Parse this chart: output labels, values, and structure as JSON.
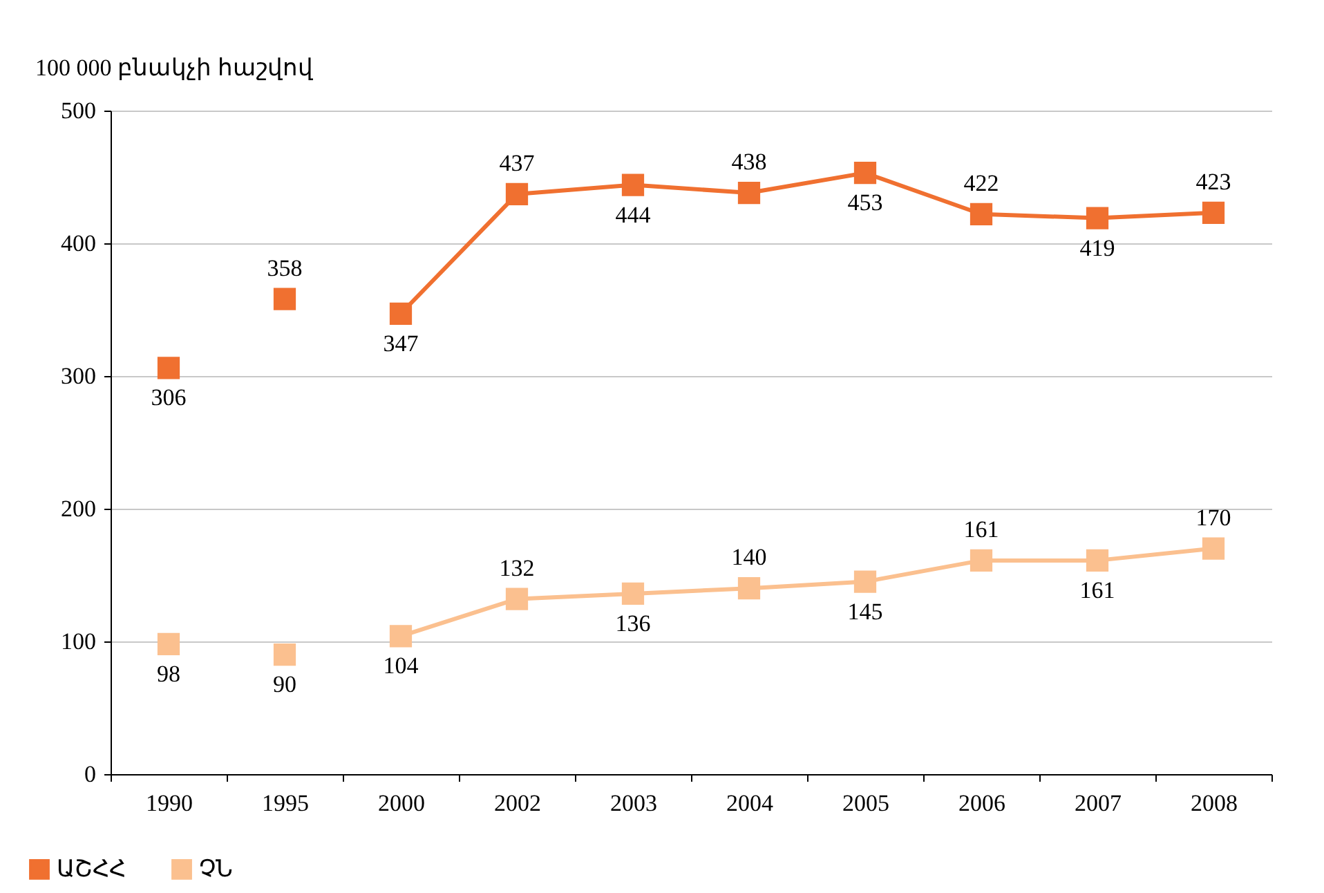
{
  "chart_data": {
    "type": "line",
    "ylabel": "100 000 բնակչի հաշվով",
    "categories": [
      "1990",
      "1995",
      "2000",
      "2002",
      "2003",
      "2004",
      "2005",
      "2006",
      "2007",
      "2008"
    ],
    "series": [
      {
        "name": "ԱՇՀՀ",
        "type": "line",
        "color": "#f07030",
        "values": [
          null,
          null,
          347,
          437,
          444,
          438,
          453,
          422,
          419,
          423
        ]
      },
      {
        "type": "scatter",
        "color": "#f07030",
        "values": [
          306,
          358,
          null,
          null,
          null,
          null,
          null,
          null,
          null,
          null
        ]
      },
      {
        "name": "ՉՆ",
        "type": "line",
        "color": "#fbc08f",
        "values": [
          null,
          null,
          104,
          132,
          136,
          140,
          145,
          161,
          161,
          170
        ]
      },
      {
        "type": "scatter",
        "color": "#fbc08f",
        "values": [
          98,
          90,
          null,
          null,
          null,
          null,
          null,
          null,
          null,
          null
        ]
      }
    ],
    "ylim": [
      0,
      500
    ],
    "yticks": [
      0,
      100,
      200,
      300,
      400,
      500
    ],
    "grid": "y",
    "legend": "bottom left",
    "marker": "square",
    "data_labels": true
  }
}
